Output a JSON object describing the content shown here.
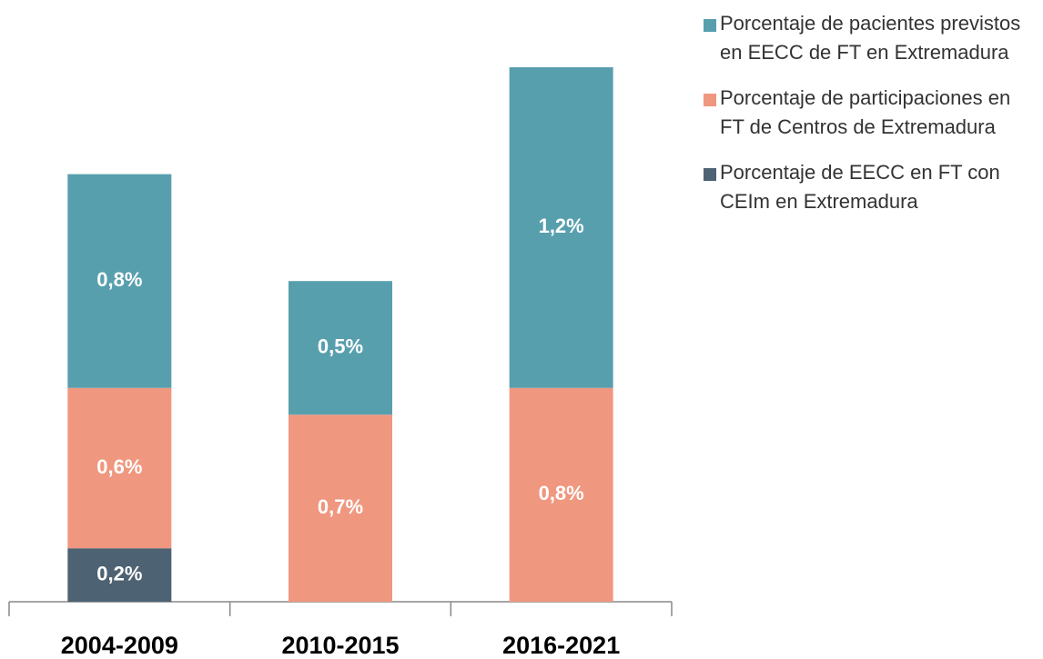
{
  "chart_data": {
    "type": "stacked-bar",
    "categories": [
      "2004-2009",
      "2010-2015",
      "2016-2021"
    ],
    "series": [
      {
        "name": "Porcentaje de EECC en FT con CEIm en Extremadura",
        "color": "#4d6272",
        "values": [
          0.2,
          null,
          null
        ],
        "value_labels": [
          "0,2%",
          null,
          null
        ]
      },
      {
        "name": "Porcentaje de participaciones en FT de Centros de Extremadura",
        "color": "#f0977f",
        "values": [
          0.6,
          0.7,
          0.8
        ],
        "value_labels": [
          "0,6%",
          "0,7%",
          "0,8%"
        ]
      },
      {
        "name": "Porcentaje de pacientes previstos en EECC de FT en Extremadura",
        "color": "#589fae",
        "values": [
          0.8,
          0.5,
          1.2
        ],
        "value_labels": [
          "0,8%",
          "0,5%",
          "1,2%"
        ]
      }
    ]
  }
}
